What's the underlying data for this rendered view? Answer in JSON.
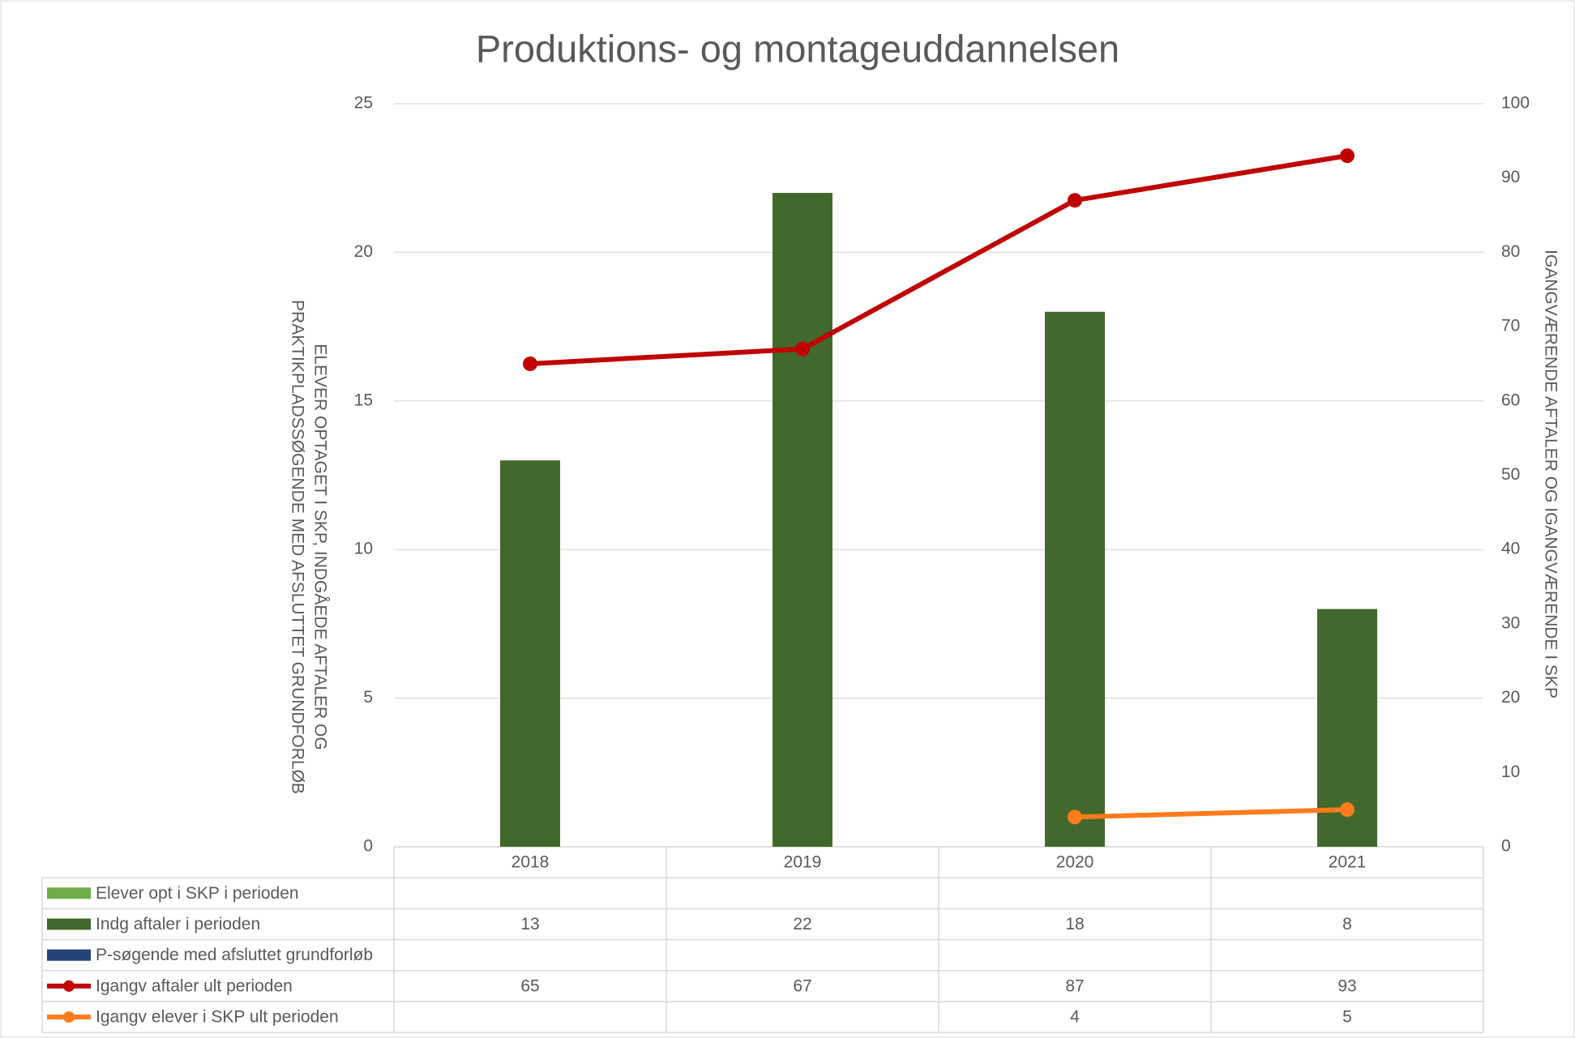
{
  "chart_data": {
    "type": "bar_line_table",
    "title": "Produktions- og montageuddannelsen",
    "y_label": [
      "ELEVER OPTAGET I SKP, INDGÅEDE AFTALER OG",
      "PRAKTIKPLADSSØGENDE MED AFSLUTTET GRUNDFORLØB"
    ],
    "y2_label": "IGANGVÆRENDE AFTALER OG IGANGVÆRENDE I SKP",
    "categories": [
      "2018",
      "2019",
      "2020",
      "2021"
    ],
    "series": [
      {
        "name": "Elever opt i SKP i perioden",
        "color": "#70ad47",
        "kind": "bar",
        "values": [
          null,
          null,
          null,
          null
        ]
      },
      {
        "name": "Indg aftaler i perioden",
        "color": "#43682b",
        "kind": "bar",
        "values": [
          13,
          22,
          18,
          8
        ]
      },
      {
        "name": "P-søgende med afsluttet grundforløb",
        "color": "#264478",
        "kind": "bar",
        "values": [
          null,
          null,
          null,
          null
        ]
      },
      {
        "name": "Igangv aftaler ult perioden",
        "color": "#c00000",
        "kind": "line",
        "axis": "y2",
        "values": [
          65,
          67,
          87,
          93
        ]
      },
      {
        "name": "Igangv elever i SKP ult perioden",
        "color": "#ff7b1b",
        "kind": "line",
        "axis": "y2",
        "values": [
          null,
          null,
          4,
          5
        ]
      }
    ],
    "ylim": [
      0,
      25
    ],
    "yticks": [
      0,
      5,
      10,
      15,
      20,
      25
    ],
    "y2lim": [
      0,
      100
    ],
    "y2ticks": [
      0,
      10,
      20,
      30,
      40,
      50,
      60,
      70,
      80,
      90,
      100
    ],
    "grid": true
  }
}
